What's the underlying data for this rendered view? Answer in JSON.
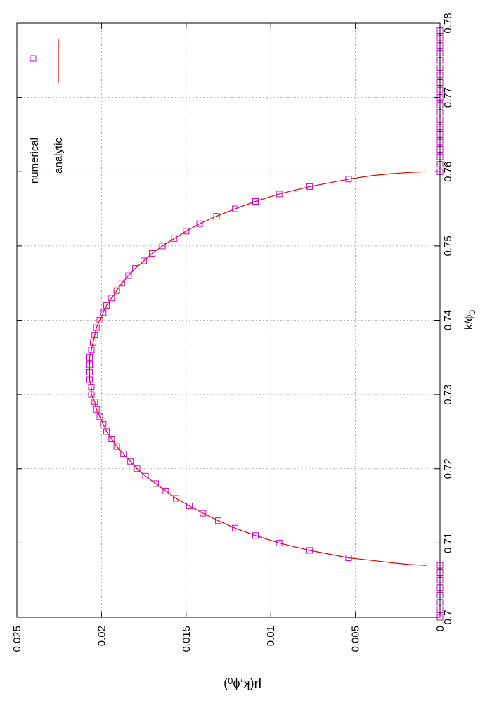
{
  "chart_data": {
    "type": "scatter",
    "orientation": "rotated-90-clockwise",
    "xlabel": "k/ϕ",
    "xlabel_subscript": "0",
    "ylabel": "μ(k,ϕ",
    "ylabel_subscript": "0",
    "ylabel_suffix": ")",
    "xlim": [
      0.7,
      0.78
    ],
    "ylim": [
      0,
      0.025
    ],
    "x_ticks": [
      "0.7",
      "0.71",
      "0.72",
      "0.73",
      "0.74",
      "0.75",
      "0.76",
      "0.77",
      "0.78"
    ],
    "y_ticks": [
      "0",
      "0.005",
      "0.01",
      "0.015",
      "0.02",
      "0.025"
    ],
    "grid": true,
    "legend_position": "top-right",
    "colors": {
      "numerical": "#cc00cc",
      "analytic": "#e00000"
    },
    "series": [
      {
        "name": "numerical",
        "style": "open-square-markers",
        "x": [
          0.7,
          0.701,
          0.702,
          0.703,
          0.704,
          0.705,
          0.706,
          0.707,
          0.708,
          0.709,
          0.71,
          0.711,
          0.712,
          0.713,
          0.714,
          0.715,
          0.716,
          0.717,
          0.718,
          0.719,
          0.72,
          0.721,
          0.722,
          0.723,
          0.724,
          0.725,
          0.726,
          0.727,
          0.728,
          0.729,
          0.73,
          0.731,
          0.732,
          0.733,
          0.734,
          0.735,
          0.736,
          0.737,
          0.738,
          0.739,
          0.74,
          0.741,
          0.742,
          0.743,
          0.744,
          0.745,
          0.746,
          0.747,
          0.748,
          0.749,
          0.75,
          0.751,
          0.752,
          0.753,
          0.754,
          0.755,
          0.756,
          0.757,
          0.758,
          0.759,
          0.76,
          0.761,
          0.762,
          0.763,
          0.764,
          0.765,
          0.766,
          0.767,
          0.768,
          0.769,
          0.77,
          0.771,
          0.772,
          0.773,
          0.774,
          0.775,
          0.776,
          0.777,
          0.778,
          0.779
        ],
        "y": [
          0,
          0,
          0,
          0,
          0,
          0,
          0,
          0,
          0.0054,
          0.0077,
          0.0095,
          0.0109,
          0.0121,
          0.0131,
          0.014,
          0.0148,
          0.0156,
          0.0162,
          0.0168,
          0.0174,
          0.0179,
          0.0183,
          0.0187,
          0.0191,
          0.0194,
          0.0197,
          0.0199,
          0.0201,
          0.0203,
          0.0204,
          0.0206,
          0.0206,
          0.0207,
          0.0207,
          0.0207,
          0.0207,
          0.0206,
          0.0205,
          0.0204,
          0.0203,
          0.0201,
          0.0199,
          0.0197,
          0.0194,
          0.0191,
          0.0188,
          0.0184,
          0.018,
          0.0175,
          0.017,
          0.0164,
          0.0157,
          0.015,
          0.0142,
          0.0132,
          0.0121,
          0.0109,
          0.0095,
          0.0077,
          0.0054,
          0,
          0,
          0,
          0,
          0,
          0,
          0,
          0,
          0,
          0,
          0,
          0,
          0,
          0,
          0,
          0,
          0,
          0,
          0,
          0
        ]
      },
      {
        "name": "analytic",
        "style": "solid-line",
        "x": [
          0.707,
          0.7071,
          0.7073,
          0.7075,
          0.708,
          0.709,
          0.71,
          0.711,
          0.712,
          0.713,
          0.714,
          0.715,
          0.716,
          0.717,
          0.718,
          0.719,
          0.72,
          0.721,
          0.722,
          0.723,
          0.724,
          0.725,
          0.726,
          0.727,
          0.728,
          0.729,
          0.73,
          0.731,
          0.732,
          0.733,
          0.734,
          0.735,
          0.736,
          0.737,
          0.738,
          0.739,
          0.74,
          0.741,
          0.742,
          0.743,
          0.744,
          0.745,
          0.746,
          0.747,
          0.748,
          0.749,
          0.75,
          0.751,
          0.752,
          0.753,
          0.754,
          0.755,
          0.756,
          0.757,
          0.758,
          0.759,
          0.7595,
          0.7597,
          0.7599,
          0.76
        ],
        "y": [
          0.0008,
          0.0018,
          0.0027,
          0.0034,
          0.0054,
          0.0077,
          0.0095,
          0.0109,
          0.0121,
          0.0131,
          0.014,
          0.0148,
          0.0156,
          0.0162,
          0.0168,
          0.0174,
          0.0179,
          0.0183,
          0.0187,
          0.0191,
          0.0194,
          0.0197,
          0.0199,
          0.0201,
          0.0203,
          0.0204,
          0.0206,
          0.0206,
          0.0207,
          0.0207,
          0.0207,
          0.0207,
          0.0206,
          0.0205,
          0.0204,
          0.0203,
          0.0201,
          0.0199,
          0.0197,
          0.0194,
          0.0191,
          0.0188,
          0.0184,
          0.018,
          0.0175,
          0.017,
          0.0164,
          0.0157,
          0.015,
          0.0142,
          0.0132,
          0.0121,
          0.0109,
          0.0095,
          0.0077,
          0.0054,
          0.0039,
          0.003,
          0.0018,
          0.0008
        ]
      }
    ]
  }
}
